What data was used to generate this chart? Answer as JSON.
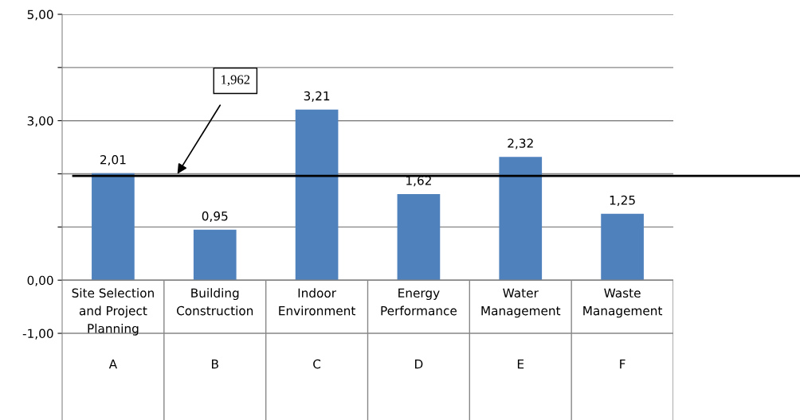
{
  "chart_data": {
    "type": "bar",
    "categories": [
      "Site Selection\nand Project\nPlanning\n\nA",
      "Building\nConstruction\n\n\nB",
      "Indoor\nEnvironment\n\n\nC",
      "Energy\nPerformance\n\n\nD",
      "Water\nManagement\n\n\nE",
      "Waste\nManagement\n\n\nF"
    ],
    "values": [
      2.01,
      0.95,
      3.21,
      1.62,
      2.32,
      1.25
    ],
    "value_labels": [
      "2,01",
      "0,95",
      "3,21",
      "1,62",
      "2,32",
      "1,25"
    ],
    "color": "#4f81bd",
    "ylim": [
      -2.63,
      5
    ],
    "yticks": [
      {
        "value": -1,
        "label": "-1,00"
      },
      {
        "value": 0,
        "label": "0,00"
      },
      {
        "value": 1,
        "label": null
      },
      {
        "value": 2,
        "label": null
      },
      {
        "value": 3,
        "label": "3,00"
      },
      {
        "value": 4,
        "label": null
      },
      {
        "value": 5,
        "label": "5,00"
      }
    ],
    "grid": "y",
    "ref_lines": [
      {
        "axis": "y",
        "value": 1.962,
        "label": "1,962",
        "color": "#000000",
        "line_style": "solid"
      }
    ]
  }
}
